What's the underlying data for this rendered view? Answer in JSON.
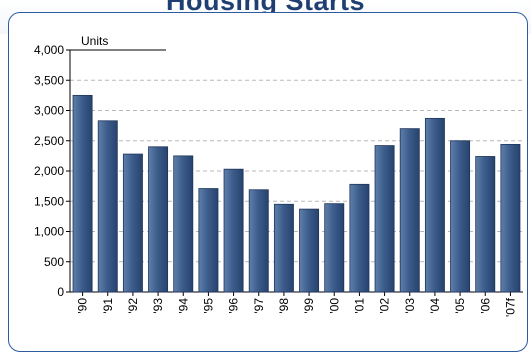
{
  "header": {
    "title": "Housing Starts"
  },
  "chart_data": {
    "type": "bar",
    "title": "",
    "ylabel": "Units",
    "xlabel": "",
    "ylim": [
      0,
      4000
    ],
    "yticks": [
      0,
      500,
      1000,
      1500,
      2000,
      2500,
      3000,
      3500,
      4000
    ],
    "ytick_labels": [
      "0",
      "500",
      "1,000",
      "1,500",
      "2,000",
      "2,500",
      "3,000",
      "3,500",
      "4,000"
    ],
    "categories": [
      "'90",
      "'91",
      "'92",
      "'93",
      "'94",
      "'95",
      "'96",
      "'97",
      "'98",
      "'99",
      "'00",
      "'01",
      "'02",
      "'03",
      "'04",
      "'05",
      "'06",
      "'07f"
    ],
    "values": [
      3250,
      2830,
      2280,
      2400,
      2250,
      1710,
      2030,
      1690,
      1450,
      1370,
      1460,
      1780,
      2420,
      2700,
      2870,
      2500,
      2240,
      2440
    ],
    "grid": true,
    "bar_color": "#3a5a89"
  }
}
